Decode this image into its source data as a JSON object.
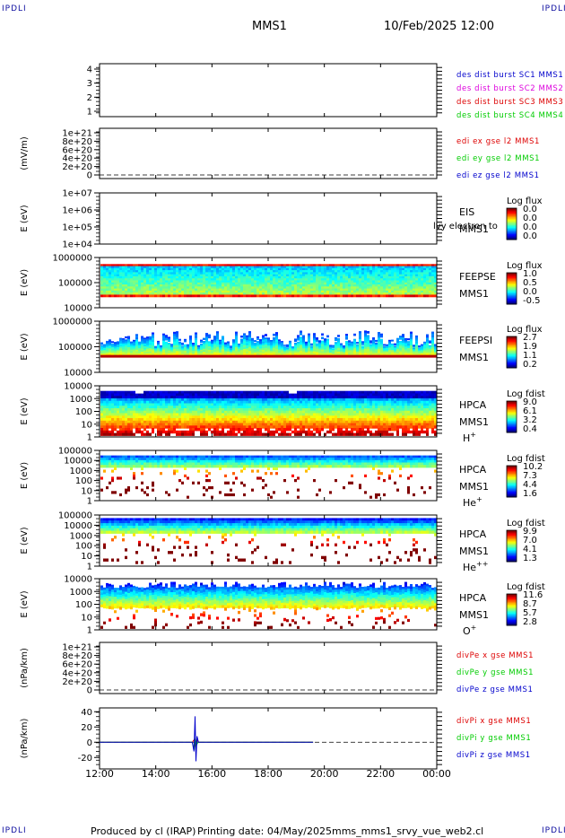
{
  "corners": {
    "tl": "IPDLI",
    "tr": "IPDLI",
    "bl": "IPDLI",
    "br": "IPDLI"
  },
  "header": {
    "title": "MMS1",
    "datetime": "10/Feb/2025 12:00"
  },
  "footer": {
    "produced": "Produced by cl (IRAP)",
    "printed": "Printing date: 04/May/2025",
    "script": "mms_mms1_srvy_vue_web2.cl"
  },
  "colors": {
    "mms1": "#0000cc",
    "mms2": "#dd00dd",
    "mms3": "#dd0000",
    "mms4": "#00cc00",
    "x": "#dd0000",
    "y": "#00cc00",
    "z": "#0000cc"
  },
  "chart_data": {
    "type": "line",
    "time_axis": {
      "ticks": [
        "12:00",
        "14:00",
        "16:00",
        "18:00",
        "20:00",
        "22:00",
        "00:00"
      ],
      "range_hours": [
        0,
        12
      ]
    },
    "panels": [
      {
        "id": "des",
        "ylabel": "",
        "ticks": [
          "4",
          "3",
          "2",
          "1"
        ],
        "legend": [
          {
            "text": "des dist burst SC1 MMS1",
            "color": "#0000cc"
          },
          {
            "text": "des dist burst SC2 MMS2",
            "color": "#dd00dd"
          },
          {
            "text": "des dist burst SC3 MMS3",
            "color": "#dd0000"
          },
          {
            "text": "des dist burst SC4 MMS4",
            "color": "#00cc00"
          }
        ],
        "series": []
      },
      {
        "id": "edi",
        "ylabel": "(mV/m)",
        "ticks": [
          "1e+21",
          "8e+20",
          "6e+20",
          "4e+20",
          "2e+20",
          "0"
        ],
        "zero_line": true,
        "legend": [
          {
            "text": "edi ex gse l2 MMS1",
            "color": "#dd0000"
          },
          {
            "text": "edi ey gse l2 MMS1",
            "color": "#00cc00"
          },
          {
            "text": "edi ez gse l2 MMS1",
            "color": "#0000cc"
          }
        ],
        "series": []
      },
      {
        "id": "eis",
        "ylabel": "E (eV)",
        "ticks": [
          "1e+07",
          "1e+06",
          "1e+05",
          "1e+04"
        ],
        "instrument": [
          "EIS",
          "MMS1"
        ],
        "overlay_text": "lvy electron to",
        "colorbar": {
          "title": "Log flux",
          "labels": [
            "0.0",
            "0.0",
            "0.0",
            "0.0"
          ]
        },
        "spectrogram": {
          "pattern": "empty"
        }
      },
      {
        "id": "feepse",
        "ylabel": "E (eV)",
        "ticks": [
          "1000000",
          "100000",
          "10000"
        ],
        "instrument": [
          "FEEPSE",
          "MMS1"
        ],
        "colorbar": {
          "title": "Log flux",
          "labels": [
            "1.0",
            "0.5",
            "0.0",
            "-0.5"
          ]
        },
        "spectrogram": {
          "pattern": "feeps_e"
        }
      },
      {
        "id": "feepsi",
        "ylabel": "E (eV)",
        "ticks": [
          "1000000",
          "100000",
          "10000"
        ],
        "instrument": [
          "FEEPSI",
          "MMS1"
        ],
        "colorbar": {
          "title": "Log flux",
          "labels": [
            "2.7",
            "1.9",
            "1.1",
            "0.2"
          ]
        },
        "spectrogram": {
          "pattern": "feeps_i"
        }
      },
      {
        "id": "hpca_h",
        "ylabel": "E (eV)",
        "ticks": [
          "10000",
          "1000",
          "100",
          "10",
          "1"
        ],
        "instrument": [
          "HPCA",
          "MMS1",
          "H+"
        ],
        "colorbar": {
          "title": "Log fdist",
          "labels": [
            "9.0",
            "6.1",
            "3.2",
            "0.4"
          ]
        },
        "spectrogram": {
          "pattern": "hpca_h"
        }
      },
      {
        "id": "hpca_he",
        "ylabel": "E (eV)",
        "ticks": [
          "100000",
          "10000",
          "1000",
          "100",
          "10",
          "1"
        ],
        "instrument": [
          "HPCA",
          "MMS1",
          "He+"
        ],
        "colorbar": {
          "title": "Log fdist",
          "labels": [
            "10.2",
            "7.3",
            "4.4",
            "1.6"
          ]
        },
        "spectrogram": {
          "pattern": "hpca_he"
        }
      },
      {
        "id": "hpca_hepp",
        "ylabel": "E (eV)",
        "ticks": [
          "100000",
          "10000",
          "1000",
          "100",
          "10",
          "1"
        ],
        "instrument": [
          "HPCA",
          "MMS1",
          "He++"
        ],
        "colorbar": {
          "title": "Log fdist",
          "labels": [
            "9.9",
            "7.0",
            "4.1",
            "1.3"
          ]
        },
        "spectrogram": {
          "pattern": "hpca_hepp"
        }
      },
      {
        "id": "hpca_o",
        "ylabel": "E (eV)",
        "ticks": [
          "10000",
          "1000",
          "100",
          "10",
          "1"
        ],
        "instrument": [
          "HPCA",
          "MMS1",
          "O+"
        ],
        "colorbar": {
          "title": "Log fdist",
          "labels": [
            "11.6",
            "8.7",
            "5.7",
            "2.8"
          ]
        },
        "spectrogram": {
          "pattern": "hpca_o"
        }
      },
      {
        "id": "divpe",
        "ylabel": "(nPa/km)",
        "ticks": [
          "1e+21",
          "8e+20",
          "6e+20",
          "4e+20",
          "2e+20",
          "0"
        ],
        "zero_line": true,
        "legend": [
          {
            "text": "divPe x gse MMS1",
            "color": "#dd0000"
          },
          {
            "text": "divPe y gse MMS1",
            "color": "#00cc00"
          },
          {
            "text": "divPe z gse MMS1",
            "color": "#0000cc"
          }
        ],
        "series": []
      },
      {
        "id": "divpi",
        "ylabel": "(nPa/km)",
        "ticks": [
          "40",
          "20",
          "0",
          "-20"
        ],
        "ylim": [
          -35,
          45
        ],
        "zero_line": true,
        "legend": [
          {
            "text": "divPi x gse MMS1",
            "color": "#dd0000"
          },
          {
            "text": "divPi y gse MMS1",
            "color": "#00cc00"
          },
          {
            "text": "divPi z gse MMS1",
            "color": "#0000cc"
          }
        ],
        "series": [
          {
            "name": "divPi x gse MMS1",
            "color": "#dd0000",
            "x": [
              0,
              3.3,
              3.38,
              3.42,
              3.46,
              3.52,
              7.6
            ],
            "y": [
              0,
              0,
              4,
              -6,
              3,
              0,
              0
            ]
          },
          {
            "name": "divPi y gse MMS1",
            "color": "#00cc00",
            "x": [
              0,
              3.3,
              3.37,
              3.41,
              3.45,
              3.5,
              7.6
            ],
            "y": [
              0,
              0,
              -10,
              6,
              -4,
              0,
              0
            ]
          },
          {
            "name": "divPi z gse MMS1",
            "color": "#0000cc",
            "x": [
              0,
              3.3,
              3.36,
              3.4,
              3.43,
              3.47,
              3.52,
              7.6
            ],
            "y": [
              0,
              0,
              -12,
              34,
              -25,
              8,
              0,
              0
            ]
          }
        ]
      }
    ]
  }
}
